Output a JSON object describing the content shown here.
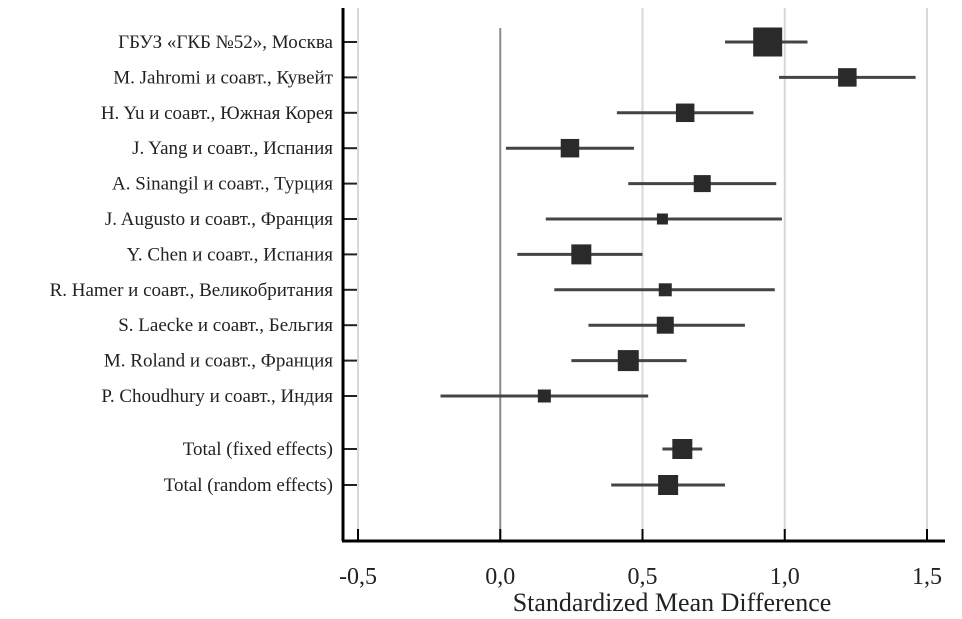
{
  "chart_data": {
    "type": "forest",
    "title": "",
    "xlabel": "Standardized Mean Difference",
    "xlim": [
      -0.5,
      1.5
    ],
    "xticks": [
      -0.5,
      0.0,
      0.5,
      1.0,
      1.5
    ],
    "xtick_labels": [
      "-0,5",
      "0,0",
      "0,5",
      "1,0",
      "1,5"
    ],
    "grid": true,
    "reference_line": 0.0,
    "studies": [
      {
        "label": "ГБУЗ «ГКБ №52», Москва",
        "estimate": 0.94,
        "ci": [
          0.79,
          1.08
        ],
        "weight": 29
      },
      {
        "label": "M. Jahromi и соавт., Кувейт",
        "estimate": 1.22,
        "ci": [
          0.98,
          1.46
        ],
        "weight": 18.5
      },
      {
        "label": "H. Yu и соавт., Южная Корея",
        "estimate": 0.65,
        "ci": [
          0.41,
          0.89
        ],
        "weight": 18.5
      },
      {
        "label": "J. Yang и соавт., Испания",
        "estimate": 0.245,
        "ci": [
          0.02,
          0.47
        ],
        "weight": 18.5
      },
      {
        "label": "A. Sinangil и соавт., Турция",
        "estimate": 0.71,
        "ci": [
          0.45,
          0.97
        ],
        "weight": 17
      },
      {
        "label": "J. Augusto и соавт., Франция",
        "estimate": 0.57,
        "ci": [
          0.16,
          0.99
        ],
        "weight": 11
      },
      {
        "label": "Y. Chen и соавт., Испания",
        "estimate": 0.285,
        "ci": [
          0.06,
          0.5
        ],
        "weight": 20
      },
      {
        "label": "R. Hamer и соавт., Великобритания",
        "estimate": 0.58,
        "ci": [
          0.19,
          0.965
        ],
        "weight": 13
      },
      {
        "label": "S. Laecke и соавт., Бельгия",
        "estimate": 0.58,
        "ci": [
          0.31,
          0.86
        ],
        "weight": 17
      },
      {
        "label": "M. Roland и соавт., Франция",
        "estimate": 0.45,
        "ci": [
          0.25,
          0.655
        ],
        "weight": 21
      },
      {
        "label": "P. Choudhury и соавт., Индия",
        "estimate": 0.155,
        "ci": [
          -0.21,
          0.52
        ],
        "weight": 13
      }
    ],
    "totals": [
      {
        "label": "Total (fixed effects)",
        "estimate": 0.64,
        "ci": [
          0.57,
          0.71
        ],
        "weight": 20
      },
      {
        "label": "Total (random effects)",
        "estimate": 0.59,
        "ci": [
          0.39,
          0.79
        ],
        "weight": 20
      }
    ]
  }
}
